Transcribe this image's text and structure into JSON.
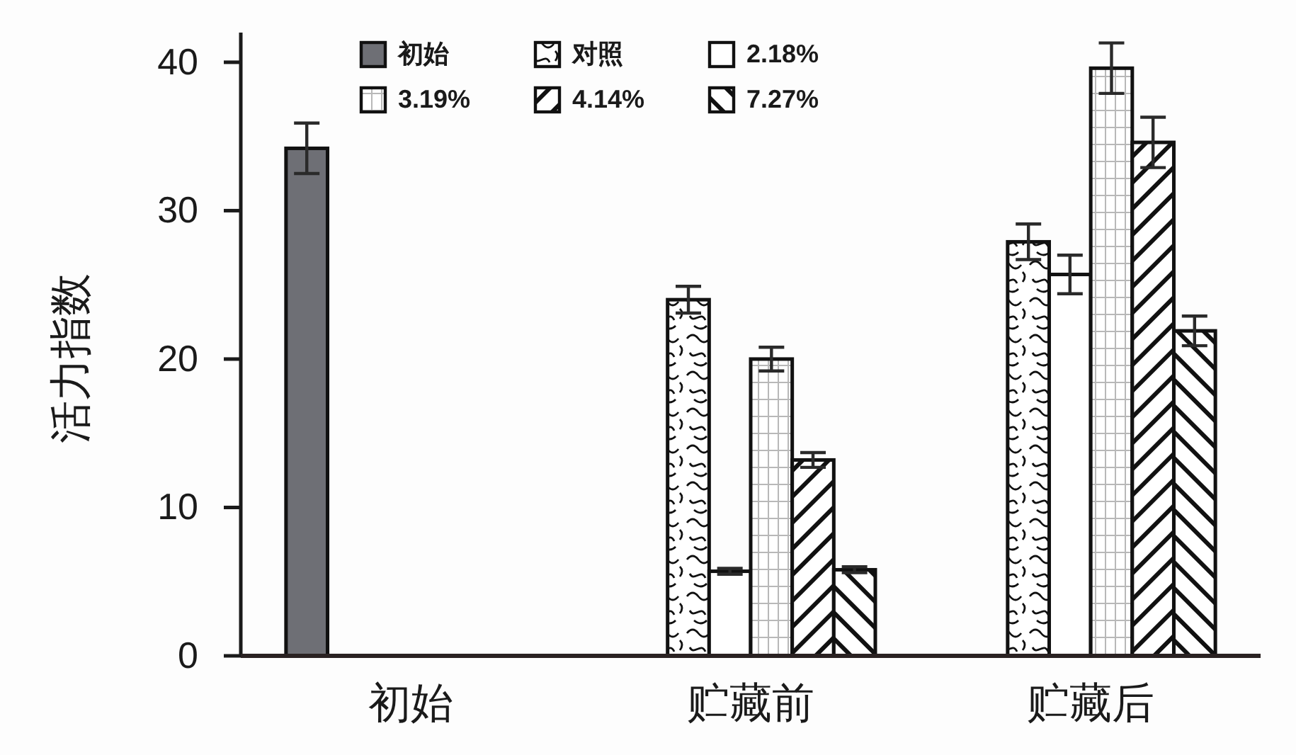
{
  "chart_data": {
    "type": "bar",
    "ylabel": "活力指数",
    "categories": [
      "初始",
      "贮藏前",
      "贮藏后"
    ],
    "series": [
      {
        "name": "初始",
        "color": "#6e6f75",
        "values": [
          34.2,
          null,
          null
        ],
        "errors": [
          1.7,
          null,
          null
        ]
      },
      {
        "name": "对照",
        "color": "#111111",
        "values": [
          null,
          24.0,
          27.9
        ],
        "errors": [
          null,
          0.9,
          1.2
        ]
      },
      {
        "name": "2.18%",
        "color": "#ffffff",
        "values": [
          null,
          5.7,
          25.7
        ],
        "errors": [
          null,
          0.2,
          1.3
        ]
      },
      {
        "name": "3.19%",
        "color": "#111111",
        "values": [
          null,
          20.0,
          39.6
        ],
        "errors": [
          null,
          0.8,
          1.7
        ]
      },
      {
        "name": "4.14%",
        "color": "#111111",
        "values": [
          null,
          13.2,
          34.6
        ],
        "errors": [
          null,
          0.5,
          1.7
        ]
      },
      {
        "name": "7.27%",
        "color": "#111111",
        "values": [
          null,
          5.8,
          21.9
        ],
        "errors": [
          null,
          0.2,
          1.0
        ]
      }
    ],
    "ylim": [
      0,
      42
    ],
    "yticks": [
      0,
      10,
      20,
      30,
      40
    ],
    "legend": "top"
  }
}
